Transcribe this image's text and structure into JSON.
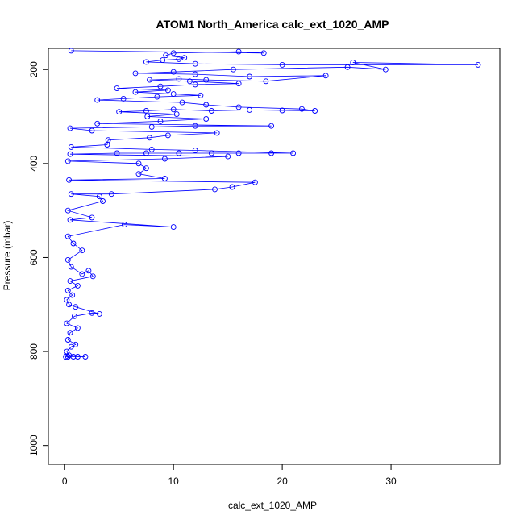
{
  "chart_data": {
    "type": "scatter",
    "title": "ATOM1 North_America calc_ext_1020_AMP",
    "xlabel": "calc_ext_1020_AMP",
    "ylabel": "Pressure (mbar)",
    "xlim": [
      -1.5,
      40
    ],
    "ylim": [
      1040,
      155
    ],
    "y_reversed": true,
    "xticks": [
      0,
      10,
      20,
      30
    ],
    "yticks": [
      200,
      400,
      600,
      800,
      1000
    ],
    "grid": false,
    "color": "#0000ff",
    "markers": "open-circle",
    "connected": true,
    "series": [
      {
        "values": [
          [
            0.1,
            811
          ],
          [
            0.3,
            811
          ],
          [
            0.8,
            811
          ],
          [
            1.2,
            811
          ],
          [
            1.9,
            811
          ],
          [
            0.4,
            808
          ],
          [
            0.2,
            800
          ],
          [
            0.6,
            790
          ],
          [
            1.0,
            785
          ],
          [
            0.3,
            775
          ],
          [
            0.5,
            760
          ],
          [
            1.2,
            750
          ],
          [
            0.2,
            740
          ],
          [
            0.9,
            725
          ],
          [
            2.5,
            718
          ],
          [
            3.2,
            720
          ],
          [
            1.0,
            705
          ],
          [
            0.4,
            700
          ],
          [
            0.2,
            690
          ],
          [
            0.7,
            680
          ],
          [
            0.3,
            670
          ],
          [
            1.2,
            660
          ],
          [
            0.5,
            650
          ],
          [
            2.6,
            640
          ],
          [
            2.2,
            628
          ],
          [
            1.6,
            635
          ],
          [
            0.6,
            620
          ],
          [
            0.3,
            605
          ],
          [
            1.6,
            585
          ],
          [
            0.8,
            570
          ],
          [
            0.3,
            555
          ],
          [
            5.5,
            530
          ],
          [
            10.0,
            535
          ],
          [
            0.5,
            520
          ],
          [
            2.5,
            515
          ],
          [
            0.3,
            500
          ],
          [
            3.5,
            480
          ],
          [
            3.2,
            470
          ],
          [
            0.6,
            465
          ],
          [
            4.3,
            465
          ],
          [
            13.8,
            455
          ],
          [
            15.4,
            450
          ],
          [
            17.5,
            440
          ],
          [
            0.4,
            435
          ],
          [
            9.2,
            432
          ],
          [
            6.8,
            422
          ],
          [
            7.5,
            410
          ],
          [
            6.8,
            400
          ],
          [
            0.3,
            395
          ],
          [
            9.2,
            390
          ],
          [
            15.0,
            385
          ],
          [
            0.5,
            380
          ],
          [
            4.8,
            378
          ],
          [
            7.5,
            378
          ],
          [
            10.5,
            378
          ],
          [
            13.5,
            378
          ],
          [
            16.0,
            378
          ],
          [
            19.0,
            378
          ],
          [
            21.0,
            378
          ],
          [
            12.0,
            372
          ],
          [
            8.0,
            370
          ],
          [
            0.6,
            365
          ],
          [
            3.9,
            360
          ],
          [
            4.0,
            350
          ],
          [
            7.8,
            345
          ],
          [
            9.5,
            340
          ],
          [
            14.0,
            335
          ],
          [
            2.5,
            330
          ],
          [
            0.5,
            325
          ],
          [
            8.0,
            322
          ],
          [
            12.0,
            320
          ],
          [
            19.0,
            320
          ],
          [
            3.0,
            315
          ],
          [
            8.8,
            310
          ],
          [
            13.0,
            305
          ],
          [
            7.6,
            300
          ],
          [
            10.3,
            295
          ],
          [
            5.0,
            290
          ],
          [
            7.5,
            288
          ],
          [
            10.0,
            285
          ],
          [
            13.5,
            288
          ],
          [
            17.0,
            286
          ],
          [
            20.0,
            287
          ],
          [
            23.0,
            288
          ],
          [
            21.8,
            284
          ],
          [
            16.0,
            280
          ],
          [
            13.0,
            275
          ],
          [
            10.8,
            270
          ],
          [
            3.0,
            265
          ],
          [
            5.4,
            262
          ],
          [
            8.5,
            258
          ],
          [
            12.5,
            255
          ],
          [
            10.0,
            252
          ],
          [
            6.5,
            248
          ],
          [
            9.5,
            244
          ],
          [
            4.8,
            240
          ],
          [
            8.8,
            236
          ],
          [
            12.0,
            232
          ],
          [
            16.0,
            230
          ],
          [
            11.5,
            225
          ],
          [
            7.8,
            222
          ],
          [
            10.5,
            220
          ],
          [
            13.0,
            222
          ],
          [
            18.5,
            225
          ],
          [
            24.0,
            213
          ],
          [
            17.0,
            215
          ],
          [
            12.0,
            210
          ],
          [
            6.5,
            208
          ],
          [
            10.0,
            205
          ],
          [
            15.5,
            200
          ],
          [
            26.0,
            195
          ],
          [
            29.5,
            200
          ],
          [
            26.5,
            185
          ],
          [
            38.0,
            190
          ],
          [
            20.0,
            190
          ],
          [
            12.0,
            188
          ],
          [
            7.5,
            184
          ],
          [
            9.0,
            180
          ],
          [
            10.5,
            178
          ],
          [
            11.0,
            175
          ],
          [
            9.3,
            170
          ],
          [
            10.0,
            165
          ],
          [
            16.0,
            162
          ],
          [
            18.3,
            165
          ],
          [
            0.6,
            160
          ]
        ]
      }
    ]
  }
}
